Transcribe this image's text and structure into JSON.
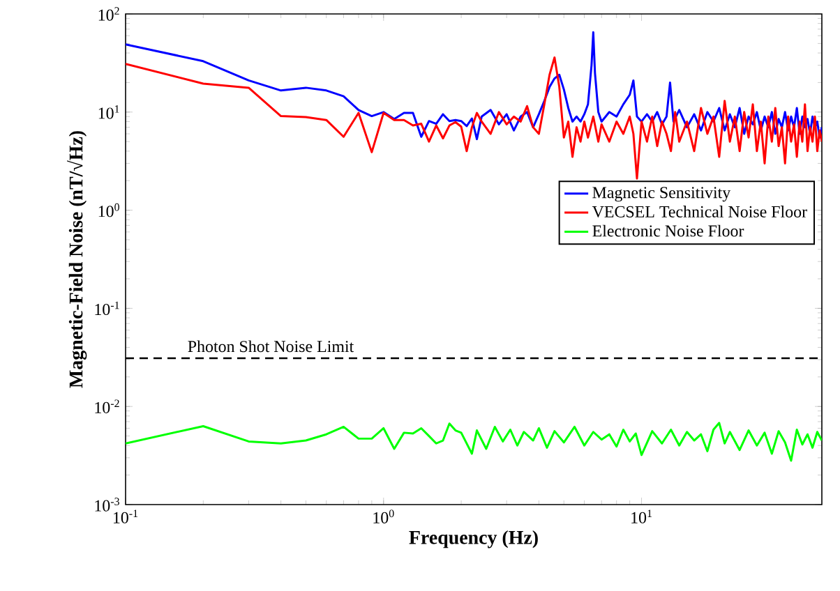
{
  "chart_data": {
    "type": "line",
    "xlabel": "Frequency (Hz)",
    "ylabel": "Magnetic-Field Noise (nT/√Hz)",
    "log": "xy",
    "xlim": [
      0.1,
      50
    ],
    "ylim": [
      0.001,
      100
    ],
    "xticks": [
      {
        "value": 0.1,
        "label": "10$^{-1}$"
      },
      {
        "value": 1,
        "label": "10$^{0}$"
      },
      {
        "value": 10,
        "label": "10$^{1}$"
      }
    ],
    "yticks": [
      {
        "value": 0.001,
        "label": "10$^{-3}$"
      },
      {
        "value": 0.01,
        "label": "10$^{-2}$"
      },
      {
        "value": 0.1,
        "label": "10$^{-1}$"
      },
      {
        "value": 1,
        "label": "10$^{0}$"
      },
      {
        "value": 10,
        "label": "10$^{1}$"
      },
      {
        "value": 100,
        "label": "10$^{2}$"
      }
    ],
    "grid": false,
    "legend": "right",
    "marker": "none",
    "line_style": "solid",
    "ref_lines": [
      {
        "axis": "y",
        "value": 0.031,
        "label": "Photon Shot Noise Limit",
        "color": "#000000",
        "line_style": "dashed"
      }
    ],
    "series": [
      {
        "name": "Magnetic Sensitivity",
        "color": "#0000ff",
        "x": [
          0.1,
          0.2,
          0.3,
          0.4,
          0.5,
          0.6,
          0.7,
          0.8,
          0.9,
          1.0,
          1.1,
          1.2,
          1.3,
          1.4,
          1.5,
          1.6,
          1.7,
          1.8,
          1.9,
          2.0,
          2.1,
          2.2,
          2.3,
          2.4,
          2.6,
          2.8,
          3.0,
          3.2,
          3.4,
          3.6,
          3.8,
          4.0,
          4.2,
          4.4,
          4.6,
          4.8,
          5.0,
          5.2,
          5.4,
          5.6,
          5.8,
          6.0,
          6.2,
          6.4,
          6.5,
          6.6,
          6.8,
          7.0,
          7.5,
          8.0,
          8.5,
          9.0,
          9.3,
          9.6,
          10,
          10.5,
          11,
          11.5,
          12,
          12.5,
          12.9,
          13.3,
          14,
          15,
          16,
          17,
          18,
          19,
          20,
          21,
          22,
          23,
          24,
          25,
          26,
          27,
          28,
          29,
          30,
          31,
          32,
          33,
          34,
          35,
          36,
          37,
          38,
          39,
          40,
          41,
          42,
          43,
          44,
          45,
          46,
          47,
          48,
          49,
          50
        ],
        "values": [
          49,
          33,
          21,
          16.6,
          17.7,
          16.6,
          14.5,
          10.5,
          9.1,
          10,
          8.5,
          9.8,
          9.8,
          5.6,
          8.1,
          7.6,
          9.5,
          8.1,
          8.3,
          8.1,
          7.2,
          8.6,
          5.3,
          9,
          10.5,
          7.5,
          9.5,
          6.5,
          9,
          10,
          7,
          9.5,
          13,
          18,
          22,
          24,
          17,
          11,
          8,
          9,
          8,
          9.5,
          12,
          30,
          65,
          25,
          10,
          8,
          10,
          9,
          12,
          15,
          21,
          9,
          8,
          9.5,
          8,
          10,
          7.5,
          9,
          20,
          8,
          10.5,
          7,
          9.5,
          6.5,
          10,
          8,
          11,
          6.5,
          9.5,
          7,
          11,
          6,
          9,
          7.5,
          10,
          6.5,
          9,
          7,
          10,
          6,
          8.5,
          7,
          10,
          6.5,
          9,
          7,
          11,
          6,
          9,
          7,
          8.5,
          6,
          9,
          7,
          8,
          5.5,
          7
        ]
      },
      {
        "name": "VECSEL Technical Noise Floor",
        "color": "#ff0000",
        "x": [
          0.1,
          0.2,
          0.3,
          0.4,
          0.5,
          0.6,
          0.7,
          0.8,
          0.9,
          1.0,
          1.1,
          1.2,
          1.3,
          1.4,
          1.5,
          1.6,
          1.7,
          1.8,
          1.9,
          2.0,
          2.1,
          2.2,
          2.3,
          2.4,
          2.6,
          2.8,
          3.0,
          3.2,
          3.4,
          3.6,
          3.8,
          4.0,
          4.2,
          4.4,
          4.6,
          4.8,
          5.0,
          5.2,
          5.4,
          5.6,
          5.8,
          6.0,
          6.2,
          6.5,
          6.8,
          7.0,
          7.5,
          8.0,
          8.5,
          9.0,
          9.3,
          9.6,
          10,
          10.5,
          11,
          11.5,
          12,
          12.5,
          13,
          13.5,
          14,
          15,
          16,
          17,
          18,
          19,
          20,
          21,
          22,
          23,
          24,
          25,
          26,
          27,
          28,
          29,
          30,
          31,
          32,
          33,
          34,
          35,
          36,
          37,
          38,
          39,
          40,
          41,
          42,
          43,
          44,
          45,
          46,
          47,
          48,
          49,
          50
        ],
        "values": [
          31,
          19.5,
          17.7,
          9.1,
          8.9,
          8.3,
          5.6,
          9.8,
          3.9,
          9.8,
          8.3,
          8.3,
          7.3,
          7.6,
          5,
          7.3,
          5.4,
          7.3,
          7.9,
          7.1,
          4,
          7,
          9.8,
          8,
          6,
          10,
          7.5,
          9,
          8,
          11.5,
          7,
          6,
          12,
          24,
          36,
          18,
          5.5,
          8,
          3.5,
          7,
          5,
          8,
          5.5,
          9,
          5,
          7.5,
          5,
          8,
          6,
          9,
          6,
          2.1,
          8,
          5,
          9,
          4.5,
          8,
          6,
          4,
          10,
          5,
          8,
          4,
          11,
          6,
          9,
          3.5,
          13,
          5,
          9,
          4,
          10,
          5.5,
          12,
          4,
          8,
          3,
          9,
          5,
          11,
          4.5,
          7,
          3,
          9,
          5,
          7.5,
          3.5,
          8,
          5,
          12,
          4,
          7,
          5,
          9,
          4,
          6.5,
          5
        ]
      },
      {
        "name": "Electronic Noise Floor",
        "color": "#00ff00",
        "x": [
          0.1,
          0.2,
          0.3,
          0.4,
          0.5,
          0.6,
          0.7,
          0.8,
          0.9,
          1.0,
          1.1,
          1.2,
          1.3,
          1.4,
          1.5,
          1.6,
          1.7,
          1.8,
          1.9,
          2.0,
          2.2,
          2.3,
          2.5,
          2.7,
          2.9,
          3.1,
          3.3,
          3.5,
          3.8,
          4.0,
          4.3,
          4.6,
          5.0,
          5.5,
          6.0,
          6.5,
          7.0,
          7.5,
          8.0,
          8.5,
          9.0,
          9.5,
          10,
          11,
          12,
          13,
          14,
          15,
          16,
          17,
          18,
          19,
          20,
          21,
          22,
          24,
          26,
          28,
          30,
          32,
          34,
          36,
          38,
          40,
          42,
          44,
          46,
          48,
          50
        ],
        "values": [
          0.0042,
          0.0063,
          0.0044,
          0.0042,
          0.0045,
          0.0052,
          0.0062,
          0.0047,
          0.0047,
          0.006,
          0.0037,
          0.0054,
          0.0053,
          0.006,
          0.005,
          0.0042,
          0.0045,
          0.0067,
          0.0057,
          0.0054,
          0.0033,
          0.0057,
          0.0037,
          0.0062,
          0.0044,
          0.0058,
          0.004,
          0.0055,
          0.0045,
          0.006,
          0.0038,
          0.0056,
          0.0043,
          0.0062,
          0.004,
          0.0055,
          0.0046,
          0.0052,
          0.0039,
          0.0058,
          0.0044,
          0.0053,
          0.0032,
          0.0056,
          0.0042,
          0.0058,
          0.004,
          0.0055,
          0.0045,
          0.0052,
          0.0035,
          0.0058,
          0.0068,
          0.0042,
          0.0055,
          0.0036,
          0.0057,
          0.004,
          0.0054,
          0.0033,
          0.0056,
          0.0043,
          0.0028,
          0.0058,
          0.0041,
          0.0052,
          0.0038,
          0.0055,
          0.0045
        ]
      }
    ]
  }
}
